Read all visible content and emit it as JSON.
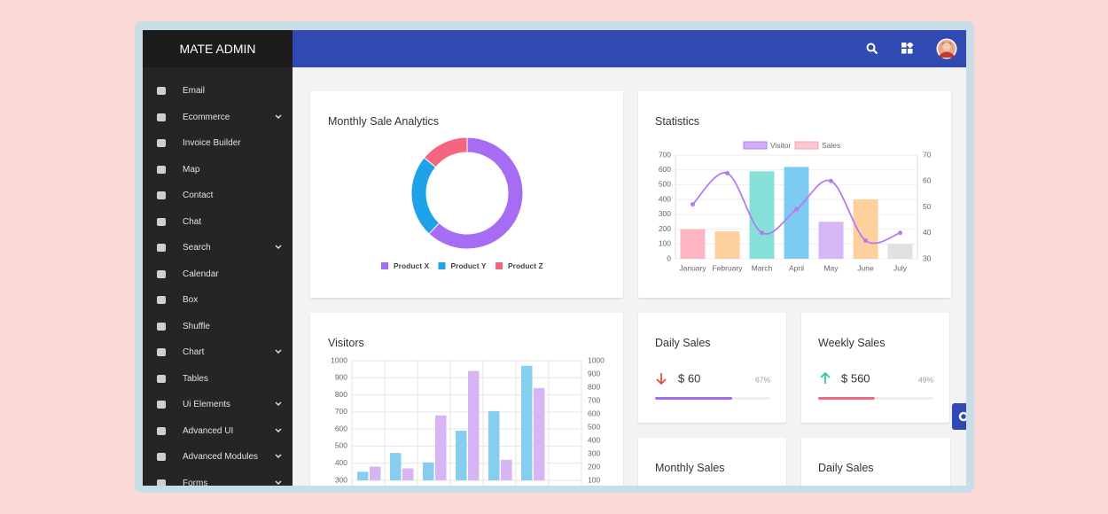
{
  "sidebar": {
    "brand": "MATE ADMIN",
    "items": [
      {
        "label": "Email",
        "submenu": false
      },
      {
        "label": "Ecommerce",
        "submenu": true
      },
      {
        "label": "Invoice Builder",
        "submenu": false
      },
      {
        "label": "Map",
        "submenu": false
      },
      {
        "label": "Contact",
        "submenu": false
      },
      {
        "label": "Chat",
        "submenu": false
      },
      {
        "label": "Search",
        "submenu": true
      },
      {
        "label": "Calendar",
        "submenu": false
      },
      {
        "label": "Box",
        "submenu": false
      },
      {
        "label": "Shuffle",
        "submenu": false
      },
      {
        "label": "Chart",
        "submenu": true
      },
      {
        "label": "Tables",
        "submenu": false
      },
      {
        "label": "Ui Elements",
        "submenu": true
      },
      {
        "label": "Advanced UI",
        "submenu": true
      },
      {
        "label": "Advanced Modules",
        "submenu": true
      },
      {
        "label": "Forms",
        "submenu": true
      }
    ]
  },
  "chart_data": [
    {
      "type": "donut",
      "title": "Monthly Sale Analytics",
      "categories": [
        "Product X",
        "Product Y",
        "Product Z"
      ],
      "values": [
        62,
        24,
        14
      ],
      "colors": [
        "#a76cf4",
        "#1ea3e9",
        "#f4657f"
      ]
    },
    {
      "type": "bar_line",
      "title": "Statistics",
      "categories": [
        "January",
        "February",
        "March",
        "April",
        "May",
        "June",
        "July"
      ],
      "series": [
        {
          "name": "Visitor",
          "type": "line",
          "axis": "y2",
          "color": "#b57cf2",
          "values": [
            51,
            63,
            40,
            49,
            60,
            37,
            40
          ]
        },
        {
          "name": "Sales",
          "type": "bar",
          "color": "#f6a3b5",
          "values": [
            200,
            185,
            590,
            620,
            250,
            400,
            100
          ],
          "colors": [
            "#fdb5c3",
            "#fdd09e",
            "#86e0d8",
            "#7ecbf2",
            "#d5b6f6",
            "#fdd09e",
            "#e1e1e4"
          ]
        }
      ],
      "ylim": [
        0,
        700
      ],
      "yticks": [
        0,
        100,
        200,
        300,
        400,
        500,
        600,
        700
      ],
      "y2lim": [
        30,
        70
      ],
      "y2ticks": [
        30,
        40,
        50,
        60,
        70
      ],
      "legend": "top",
      "grid": true
    },
    {
      "type": "grouped_bar",
      "title": "Visitors",
      "categories": [
        null,
        null,
        null,
        null,
        null,
        null
      ],
      "series": [
        {
          "color": "#85cef0",
          "values": [
            350,
            460,
            405,
            590,
            705,
            970
          ]
        },
        {
          "color": "#d7b5f5",
          "values": [
            380,
            370,
            680,
            940,
            420,
            840
          ]
        }
      ],
      "ylim": [
        300,
        1000
      ],
      "yticks": [
        300,
        400,
        500,
        600,
        700,
        800,
        900,
        1000
      ],
      "y2lim": [
        100,
        1000
      ],
      "y2ticks": [
        100,
        200,
        300,
        400,
        500,
        600,
        700,
        800,
        900,
        1000
      ],
      "grid": true
    }
  ],
  "stat_cards": [
    {
      "title": "Daily Sales",
      "amount": "$ 60",
      "percent": 67,
      "percent_label": "67%",
      "trend": "down",
      "color": "#a66cf0"
    },
    {
      "title": "Weekly Sales",
      "amount": "$ 560",
      "percent": 49,
      "percent_label": "49%",
      "trend": "up",
      "color": "#f4657f"
    }
  ],
  "bottom_cards": [
    {
      "title": "Monthly Sales"
    },
    {
      "title": "Daily Sales"
    }
  ]
}
